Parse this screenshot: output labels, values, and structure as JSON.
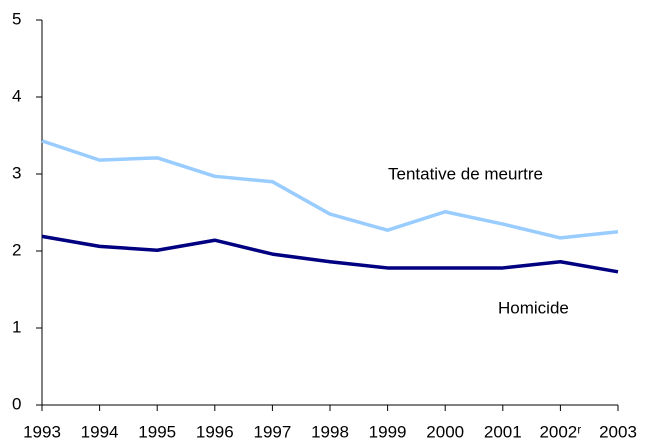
{
  "chart_data": {
    "type": "line",
    "categories": [
      "1993",
      "1994",
      "1995",
      "1996",
      "1997",
      "1998",
      "1999",
      "2000",
      "2001",
      "2002ʳ",
      "2003"
    ],
    "series": [
      {
        "name": "Tentative de meurtre",
        "color": "#99ccff",
        "values": [
          3.43,
          3.18,
          3.21,
          2.97,
          2.9,
          2.48,
          2.27,
          2.51,
          2.35,
          2.17,
          2.25
        ]
      },
      {
        "name": "Homicide",
        "color": "#000080",
        "values": [
          2.19,
          2.06,
          2.01,
          2.14,
          1.96,
          1.86,
          1.78,
          1.78,
          1.78,
          1.86,
          1.73
        ]
      }
    ],
    "ylim": [
      0,
      5
    ],
    "yticks": [
      0,
      1,
      2,
      3,
      4,
      5
    ]
  }
}
